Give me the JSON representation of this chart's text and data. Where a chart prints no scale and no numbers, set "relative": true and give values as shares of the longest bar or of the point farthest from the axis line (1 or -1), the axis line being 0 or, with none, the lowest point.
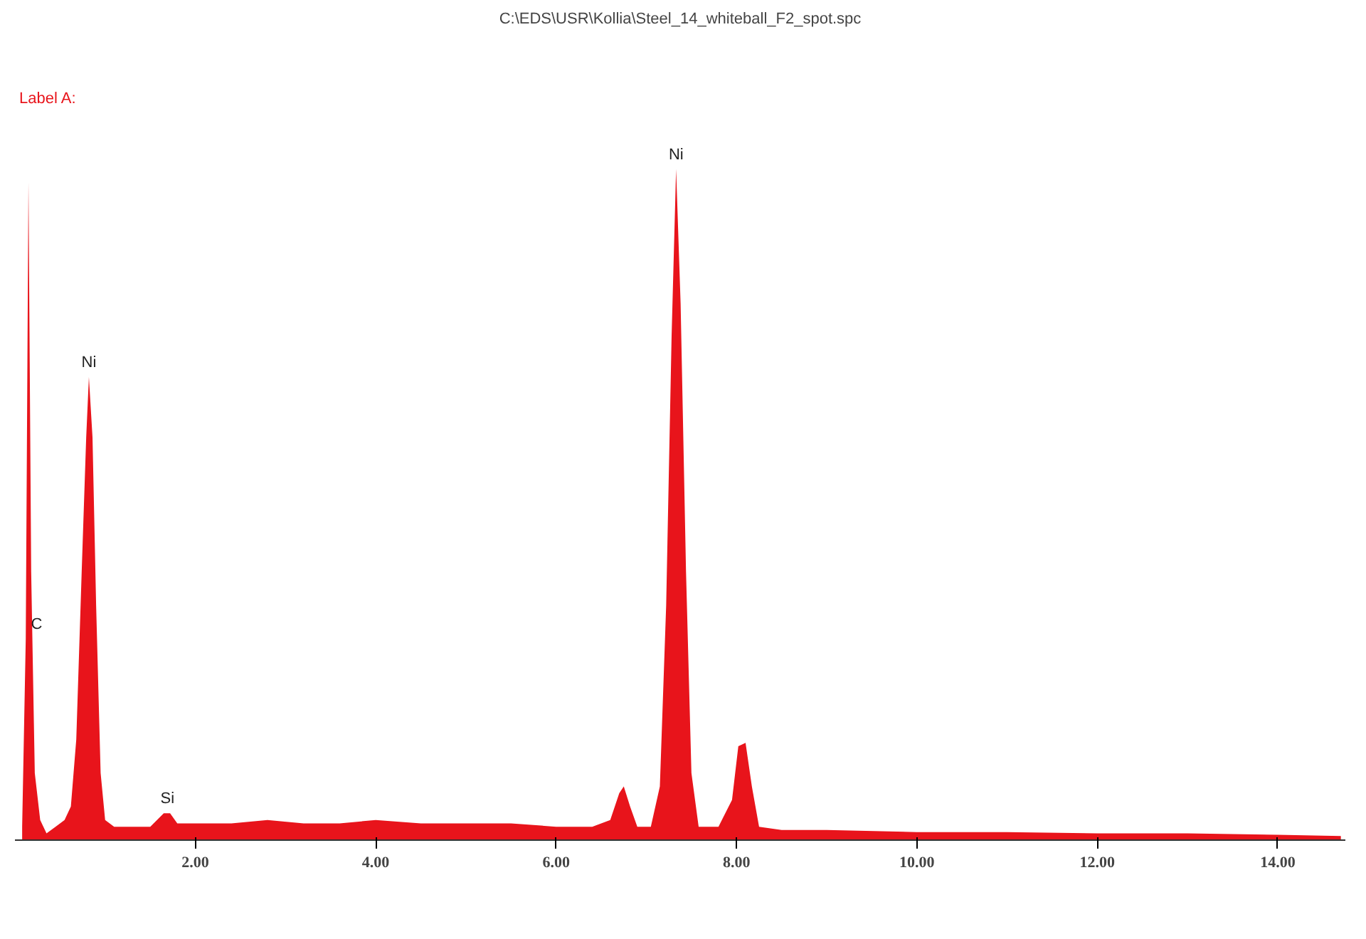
{
  "chart_data": {
    "type": "area",
    "title": "C:\\EDS\\USR\\Kollia\\Steel_14_whiteball_F2_spot.spc",
    "relative": true,
    "x": [
      0.08,
      0.12,
      0.15,
      0.18,
      0.22,
      0.28,
      0.35,
      0.45,
      0.55,
      0.62,
      0.68,
      0.74,
      0.79,
      0.82,
      0.86,
      0.9,
      0.95,
      1.0,
      1.1,
      1.3,
      1.5,
      1.65,
      1.72,
      1.8,
      2.0,
      2.4,
      2.8,
      3.2,
      3.6,
      4.0,
      4.5,
      5.0,
      5.5,
      6.0,
      6.4,
      6.6,
      6.7,
      6.75,
      6.82,
      6.9,
      7.05,
      7.15,
      7.22,
      7.28,
      7.33,
      7.38,
      7.44,
      7.5,
      7.58,
      7.8,
      7.95,
      8.02,
      8.1,
      8.17,
      8.25,
      8.5,
      9.0,
      10.0,
      11.0,
      12.0,
      13.0,
      14.0,
      14.7
    ],
    "values": [
      0.02,
      0.3,
      0.98,
      0.4,
      0.1,
      0.03,
      0.01,
      0.02,
      0.03,
      0.05,
      0.15,
      0.4,
      0.6,
      0.69,
      0.6,
      0.35,
      0.1,
      0.03,
      0.02,
      0.02,
      0.02,
      0.04,
      0.04,
      0.025,
      0.025,
      0.025,
      0.03,
      0.025,
      0.025,
      0.03,
      0.025,
      0.025,
      0.025,
      0.02,
      0.02,
      0.03,
      0.07,
      0.08,
      0.05,
      0.02,
      0.02,
      0.08,
      0.35,
      0.75,
      1.0,
      0.8,
      0.4,
      0.1,
      0.02,
      0.02,
      0.06,
      0.14,
      0.145,
      0.08,
      0.02,
      0.015,
      0.015,
      0.012,
      0.012,
      0.01,
      0.01,
      0.008,
      0.006
    ],
    "color": "#e8141b",
    "xlim": [
      0.0,
      14.75
    ],
    "xticks": [
      {
        "value": 2,
        "label": "2.00"
      },
      {
        "value": 4,
        "label": "4.00"
      },
      {
        "value": 6,
        "label": "6.00"
      },
      {
        "value": 8,
        "label": "8.00"
      },
      {
        "value": 10,
        "label": "10.00"
      },
      {
        "value": 12,
        "label": "12.00"
      },
      {
        "value": 14,
        "label": "14.00"
      }
    ],
    "grid": false,
    "annotations": [
      "Label A:",
      {
        "text": "C",
        "x": 0.24,
        "y": 0.3
      },
      {
        "text": "Ni",
        "x": 0.82,
        "y": 0.69
      },
      {
        "text": "Si",
        "x": 1.69,
        "y": 0.04
      },
      {
        "text": "Ni",
        "x": 7.33,
        "y": 1.0
      }
    ]
  }
}
